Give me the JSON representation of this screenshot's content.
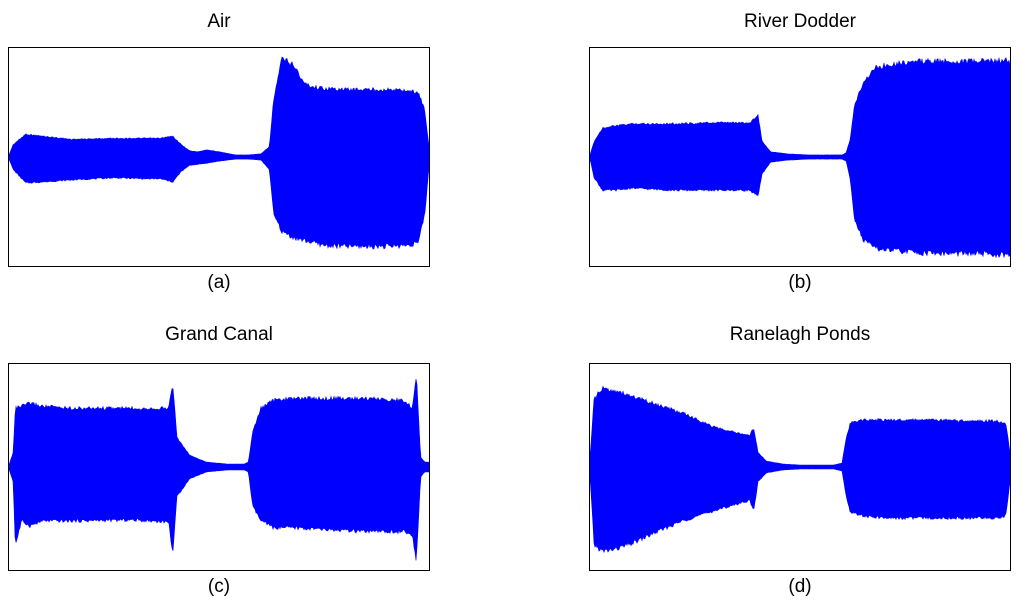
{
  "chart_data": [
    {
      "type": "area",
      "title": "Air",
      "caption": "(a)",
      "xlabel": "",
      "ylabel": "",
      "grid": false,
      "color": "#0000ff",
      "envelope": {
        "t": [
          0.0,
          0.01,
          0.04,
          0.08,
          0.15,
          0.25,
          0.33,
          0.36,
          0.39,
          0.41,
          0.43,
          0.45,
          0.47,
          0.5,
          0.54,
          0.57,
          0.6,
          0.62,
          0.63,
          0.65,
          0.68,
          0.7,
          0.72,
          0.75,
          0.8,
          0.85,
          0.9,
          0.95,
          0.975,
          0.99,
          1.0
        ],
        "upper": [
          0.02,
          0.12,
          0.22,
          0.2,
          0.17,
          0.18,
          0.18,
          0.18,
          0.2,
          0.12,
          0.06,
          0.05,
          0.07,
          0.05,
          0.02,
          0.02,
          0.03,
          0.1,
          0.55,
          0.95,
          0.88,
          0.72,
          0.68,
          0.66,
          0.65,
          0.65,
          0.65,
          0.64,
          0.62,
          0.45,
          0.1
        ],
        "lower": [
          -0.02,
          -0.12,
          -0.25,
          -0.24,
          -0.22,
          -0.2,
          -0.21,
          -0.21,
          -0.24,
          -0.14,
          -0.08,
          -0.07,
          -0.06,
          -0.04,
          -0.02,
          -0.02,
          -0.03,
          -0.12,
          -0.55,
          -0.72,
          -0.78,
          -0.8,
          -0.82,
          -0.85,
          -0.86,
          -0.86,
          -0.86,
          -0.85,
          -0.82,
          -0.55,
          -0.1
        ]
      }
    },
    {
      "type": "area",
      "title": "River Dodder",
      "caption": "(b)",
      "xlabel": "",
      "ylabel": "",
      "grid": false,
      "color": "#0000ff",
      "envelope": {
        "t": [
          0.0,
          0.01,
          0.03,
          0.06,
          0.1,
          0.2,
          0.3,
          0.38,
          0.4,
          0.41,
          0.43,
          0.47,
          0.52,
          0.56,
          0.6,
          0.61,
          0.62,
          0.63,
          0.65,
          0.68,
          0.72,
          0.78,
          0.85,
          0.92,
          0.97,
          0.99,
          1.0
        ],
        "upper": [
          0.02,
          0.15,
          0.28,
          0.3,
          0.32,
          0.32,
          0.33,
          0.33,
          0.4,
          0.15,
          0.05,
          0.03,
          0.02,
          0.02,
          0.02,
          0.04,
          0.18,
          0.5,
          0.72,
          0.86,
          0.9,
          0.92,
          0.92,
          0.92,
          0.93,
          0.93,
          0.9
        ],
        "lower": [
          -0.02,
          -0.2,
          -0.32,
          -0.32,
          -0.3,
          -0.32,
          -0.32,
          -0.32,
          -0.38,
          -0.16,
          -0.05,
          -0.03,
          -0.02,
          -0.02,
          -0.02,
          -0.04,
          -0.22,
          -0.6,
          -0.8,
          -0.88,
          -0.9,
          -0.92,
          -0.93,
          -0.93,
          -0.94,
          -0.95,
          -0.95
        ]
      }
    },
    {
      "type": "area",
      "title": "Grand Canal",
      "caption": "(c)",
      "xlabel": "",
      "ylabel": "",
      "grid": false,
      "color": "#0000ff",
      "envelope": {
        "t": [
          0.0,
          0.01,
          0.015,
          0.03,
          0.05,
          0.08,
          0.15,
          0.3,
          0.38,
          0.39,
          0.4,
          0.43,
          0.47,
          0.52,
          0.56,
          0.57,
          0.58,
          0.6,
          0.63,
          0.68,
          0.75,
          0.85,
          0.94,
          0.96,
          0.97,
          0.98,
          0.99,
          1.0
        ],
        "upper": [
          0.02,
          0.15,
          0.6,
          0.62,
          0.65,
          0.62,
          0.6,
          0.6,
          0.6,
          0.85,
          0.3,
          0.12,
          0.05,
          0.03,
          0.03,
          0.05,
          0.35,
          0.6,
          0.68,
          0.7,
          0.7,
          0.7,
          0.68,
          0.6,
          0.95,
          0.1,
          0.05,
          0.05
        ],
        "lower": [
          -0.02,
          -0.15,
          -0.8,
          -0.55,
          -0.6,
          -0.55,
          -0.55,
          -0.54,
          -0.56,
          -0.88,
          -0.3,
          -0.12,
          -0.05,
          -0.03,
          -0.03,
          -0.05,
          -0.4,
          -0.55,
          -0.62,
          -0.62,
          -0.64,
          -0.66,
          -0.66,
          -0.7,
          -0.95,
          -0.1,
          -0.05,
          -0.05
        ]
      }
    },
    {
      "type": "area",
      "title": "Ranelagh Ponds",
      "caption": "(d)",
      "xlabel": "",
      "ylabel": "",
      "grid": false,
      "color": "#0000ff",
      "envelope": {
        "t": [
          0.0,
          0.01,
          0.03,
          0.06,
          0.1,
          0.15,
          0.22,
          0.3,
          0.38,
          0.39,
          0.4,
          0.42,
          0.46,
          0.5,
          0.54,
          0.58,
          0.6,
          0.61,
          0.62,
          0.65,
          0.7,
          0.8,
          0.9,
          0.97,
          0.99,
          1.0
        ],
        "upper": [
          0.1,
          0.7,
          0.8,
          0.78,
          0.72,
          0.65,
          0.55,
          0.4,
          0.32,
          0.4,
          0.15,
          0.06,
          0.03,
          0.02,
          0.02,
          0.02,
          0.04,
          0.3,
          0.45,
          0.48,
          0.48,
          0.48,
          0.47,
          0.47,
          0.45,
          0.15
        ],
        "lower": [
          -0.1,
          -0.8,
          -0.86,
          -0.84,
          -0.78,
          -0.68,
          -0.55,
          -0.44,
          -0.34,
          -0.45,
          -0.15,
          -0.06,
          -0.03,
          -0.02,
          -0.02,
          -0.02,
          -0.04,
          -0.3,
          -0.46,
          -0.5,
          -0.52,
          -0.52,
          -0.52,
          -0.52,
          -0.5,
          -0.15
        ]
      }
    }
  ]
}
